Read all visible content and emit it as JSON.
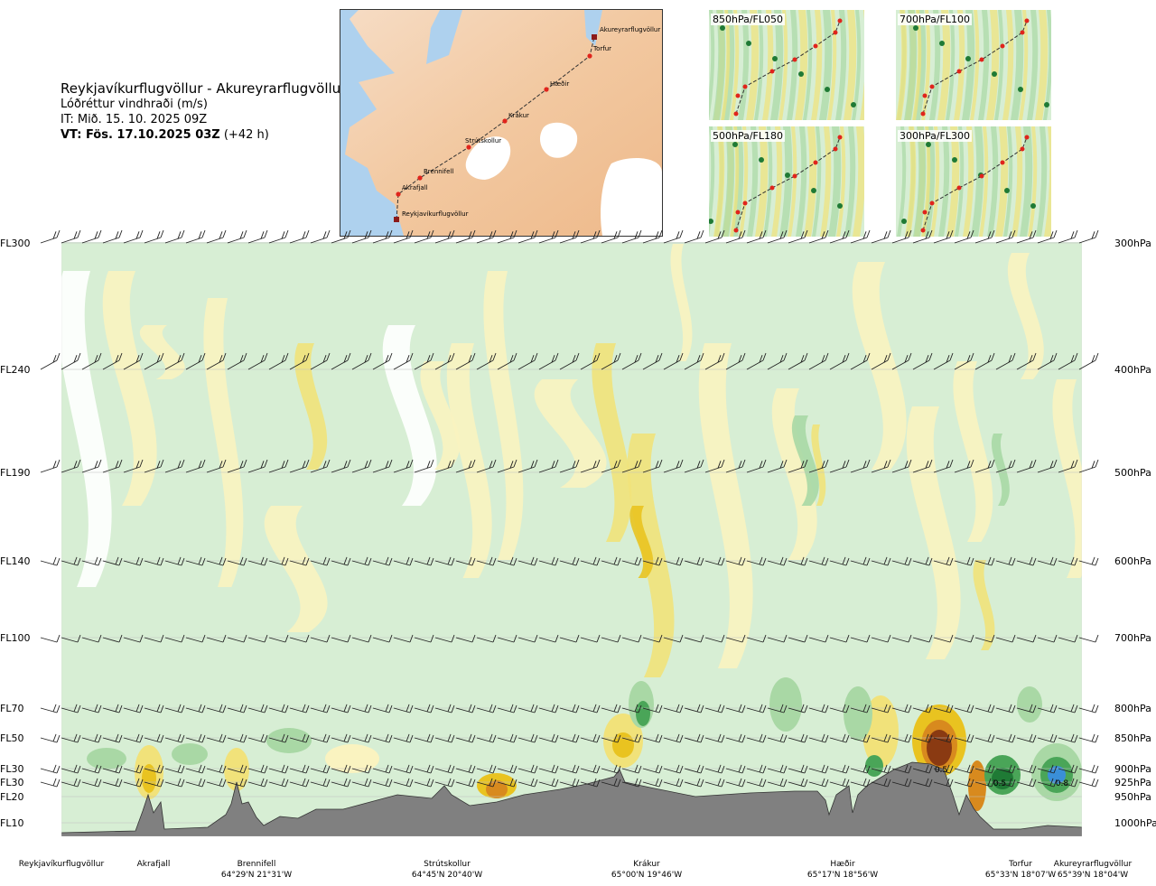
{
  "header": {
    "route": "Reykjavíkurflugvöllur - Akureyrarflugvöllur",
    "parameter": "Lóðréttur vindhraði (m/s)",
    "issue_time": "IT: Mið. 15. 10. 2025 09Z",
    "valid_time": "VT: Fös. 17.10.2025 03Z",
    "lead_time": "(+42 h)"
  },
  "map": {
    "points": [
      "Reykjavíkurflugvöllur",
      "Akrafjall",
      "Brennifell",
      "Strútskollur",
      "Krákur",
      "Hæðir",
      "Torfur",
      "Akureyrarflugvöllur"
    ]
  },
  "level_panels": [
    {
      "label": "850hPa/FL050"
    },
    {
      "label": "700hPa/FL100"
    },
    {
      "label": "500hPa/FL180"
    },
    {
      "label": "300hPa/FL300"
    }
  ],
  "chart_data": {
    "type": "heatmap",
    "title": "Lóðréttur vindhraði (m/s)",
    "flight_levels": [
      "FL300",
      "FL240",
      "FL190",
      "FL140",
      "FL100",
      "FL70",
      "FL50",
      "FL30",
      "FL30",
      "FL20",
      "FL10"
    ],
    "pressure_levels": [
      "300hPa",
      "400hPa",
      "500hPa",
      "600hPa",
      "700hPa",
      "800hPa",
      "850hPa",
      "900hPa",
      "925hPa",
      "950hPa",
      "1000hPa"
    ],
    "route_points": [
      {
        "name": "Reykjavíkurflugvöllur",
        "coord": ""
      },
      {
        "name": "Akrafjall",
        "coord": ""
      },
      {
        "name": "Brennifell",
        "coord": "64°29'N 21°31'W"
      },
      {
        "name": "Strútskollur",
        "coord": "64°45'N 20°40'W"
      },
      {
        "name": "Krákur",
        "coord": "65°00'N 19°46'W"
      },
      {
        "name": "Hæðir",
        "coord": "65°17'N 18°56'W"
      },
      {
        "name": "Torfur",
        "coord": "65°33'N 18°07'W"
      },
      {
        "name": "Akureyrarflugvöllur",
        "coord": "65°39'N 18°04'W"
      }
    ],
    "annotations": [
      "0.5",
      "0.5",
      "0.8"
    ],
    "colors": {
      "up_light": "#d7eed4",
      "up_mid": "#a9d8a5",
      "up_strong": "#4aa558",
      "up_max": "#1f7a35",
      "up_extreme": "#3a8fd8",
      "down_light": "#faf3c0",
      "down_mid": "#f1e27a",
      "down_strong": "#e9c320",
      "down_max": "#d88a1e",
      "down_extreme": "#8a3a12",
      "neutral": "#ffffff",
      "terrain": "#808080"
    }
  }
}
